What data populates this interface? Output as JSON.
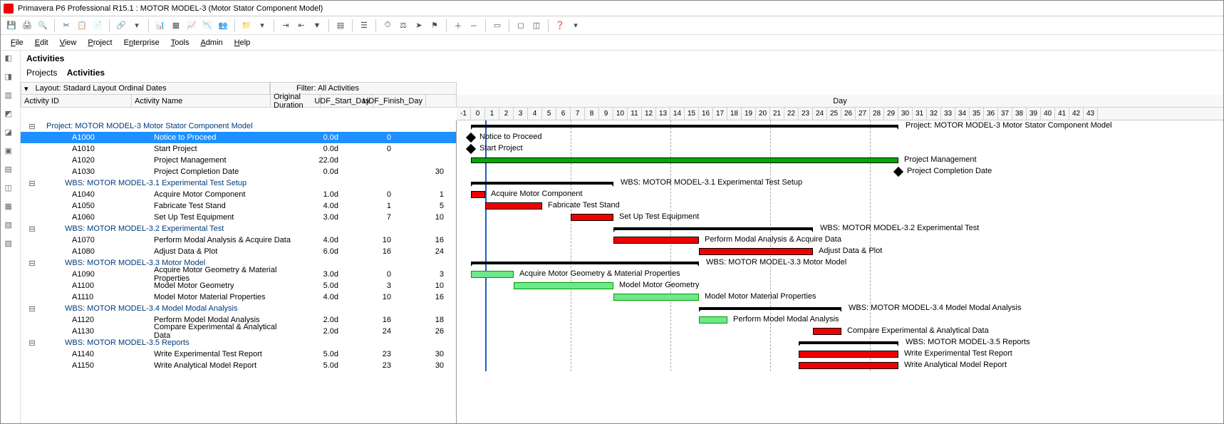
{
  "title": "Primavera P6 Professional R15.1 : MOTOR MODEL-3 (Motor Stator Component Model)",
  "menu": [
    "File",
    "Edit",
    "View",
    "Project",
    "Enterprise",
    "Tools",
    "Admin",
    "Help"
  ],
  "section": "Activities",
  "breadcrumb": {
    "a": "Projects",
    "b": "Activities"
  },
  "layout_label": "Layout: Stadard Layout Ordinal Dates",
  "filter_label": "Filter: All Activities",
  "cols": {
    "id": "Activity ID",
    "name": "Activity Name",
    "dur": "Original Duration",
    "udf1": "UDF_Start_Day",
    "udf2": "UDF_Finish_Day"
  },
  "gantt": {
    "axis_label": "Day",
    "day_start": -1,
    "day_end": 43,
    "day_width": 20,
    "data_date": 1
  },
  "rows": [
    {
      "type": "sum",
      "lvl": 0,
      "id": "Project: MOTOR MODEL-3",
      "name": "Motor Stator Component Model",
      "label": "Project: MOTOR MODEL-3  Motor Stator Component Model",
      "start": 0,
      "end": 30
    },
    {
      "type": "ms",
      "lvl": 2,
      "sel": true,
      "id": "A1000",
      "name": "Notice to Proceed",
      "dur": "0.0d",
      "udf1": "0",
      "udf2": "",
      "start": 0
    },
    {
      "type": "ms",
      "lvl": 2,
      "id": "A1010",
      "name": "Start Project",
      "dur": "0.0d",
      "udf1": "0",
      "udf2": "",
      "start": 0
    },
    {
      "type": "bar",
      "lvl": 2,
      "id": "A1020",
      "name": "Project Management",
      "dur": "22.0d",
      "udf1": "",
      "udf2": "",
      "start": 0,
      "end": 30,
      "cls": "darkgreen"
    },
    {
      "type": "ms",
      "lvl": 2,
      "id": "A1030",
      "name": "Project Completion Date",
      "dur": "0.0d",
      "udf1": "",
      "udf2": "30",
      "start": 30
    },
    {
      "type": "sum",
      "lvl": 1,
      "id": "WBS: MOTOR MODEL-3.1",
      "name": "Experimental Test Setup",
      "label": "WBS: MOTOR MODEL-3.1  Experimental Test Setup",
      "start": 0,
      "end": 10
    },
    {
      "type": "bar",
      "lvl": 2,
      "id": "A1040",
      "name": "Acquire Motor Component",
      "dur": "1.0d",
      "udf1": "0",
      "udf2": "1",
      "start": 0,
      "end": 1,
      "cls": "red"
    },
    {
      "type": "bar",
      "lvl": 2,
      "id": "A1050",
      "name": "Fabricate Test Stand",
      "dur": "4.0d",
      "udf1": "1",
      "udf2": "5",
      "start": 1,
      "end": 5,
      "cls": "red"
    },
    {
      "type": "bar",
      "lvl": 2,
      "id": "A1060",
      "name": "Set Up Test Equipment",
      "dur": "3.0d",
      "udf1": "7",
      "udf2": "10",
      "start": 7,
      "end": 10,
      "cls": "red"
    },
    {
      "type": "sum",
      "lvl": 1,
      "id": "WBS: MOTOR MODEL-3.2",
      "name": "Experimental Test",
      "label": "WBS: MOTOR MODEL-3.2  Experimental Test",
      "start": 10,
      "end": 24
    },
    {
      "type": "bar",
      "lvl": 2,
      "id": "A1070",
      "name": "Perform Modal Analysis & Acquire Data",
      "dur": "4.0d",
      "udf1": "10",
      "udf2": "16",
      "start": 10,
      "end": 16,
      "cls": "red"
    },
    {
      "type": "bar",
      "lvl": 2,
      "id": "A1080",
      "name": "Adjust Data & Plot",
      "dur": "6.0d",
      "udf1": "16",
      "udf2": "24",
      "start": 16,
      "end": 24,
      "cls": "red"
    },
    {
      "type": "sum",
      "lvl": 1,
      "id": "WBS: MOTOR MODEL-3.3",
      "name": "Motor Model",
      "label": "WBS: MOTOR MODEL-3.3  Motor Model",
      "start": 0,
      "end": 16
    },
    {
      "type": "bar",
      "lvl": 2,
      "id": "A1090",
      "name": "Acquire Motor Geometry & Material Properties",
      "dur": "3.0d",
      "udf1": "0",
      "udf2": "3",
      "start": 0,
      "end": 3,
      "cls": "green"
    },
    {
      "type": "bar",
      "lvl": 2,
      "id": "A1100",
      "name": "Model Motor Geometry",
      "dur": "5.0d",
      "udf1": "3",
      "udf2": "10",
      "start": 3,
      "end": 10,
      "cls": "green"
    },
    {
      "type": "bar",
      "lvl": 2,
      "id": "A1110",
      "name": "Model Motor Material Properties",
      "dur": "4.0d",
      "udf1": "10",
      "udf2": "16",
      "start": 10,
      "end": 16,
      "cls": "green"
    },
    {
      "type": "sum",
      "lvl": 1,
      "id": "WBS: MOTOR MODEL-3.4",
      "name": "Model Modal Analysis",
      "label": "WBS: MOTOR MODEL-3.4  Model Modal Analysis",
      "start": 16,
      "end": 26
    },
    {
      "type": "bar",
      "lvl": 2,
      "id": "A1120",
      "name": "Perform Model Modal Analysis",
      "dur": "2.0d",
      "udf1": "16",
      "udf2": "18",
      "start": 16,
      "end": 18,
      "cls": "green"
    },
    {
      "type": "bar",
      "lvl": 2,
      "id": "A1130",
      "name": "Compare Experimental & Analytical Data",
      "dur": "2.0d",
      "udf1": "24",
      "udf2": "26",
      "start": 24,
      "end": 26,
      "cls": "red"
    },
    {
      "type": "sum",
      "lvl": 1,
      "id": "WBS: MOTOR MODEL-3.5",
      "name": "Reports",
      "label": "WBS: MOTOR MODEL-3.5  Reports",
      "start": 23,
      "end": 30
    },
    {
      "type": "bar",
      "lvl": 2,
      "id": "A1140",
      "name": "Write Experimental Test Report",
      "dur": "5.0d",
      "udf1": "23",
      "udf2": "30",
      "start": 23,
      "end": 30,
      "cls": "red"
    },
    {
      "type": "bar",
      "lvl": 2,
      "id": "A1150",
      "name": "Write Analytical Model Report",
      "dur": "5.0d",
      "udf1": "23",
      "udf2": "30",
      "start": 23,
      "end": 30,
      "cls": "red"
    }
  ]
}
